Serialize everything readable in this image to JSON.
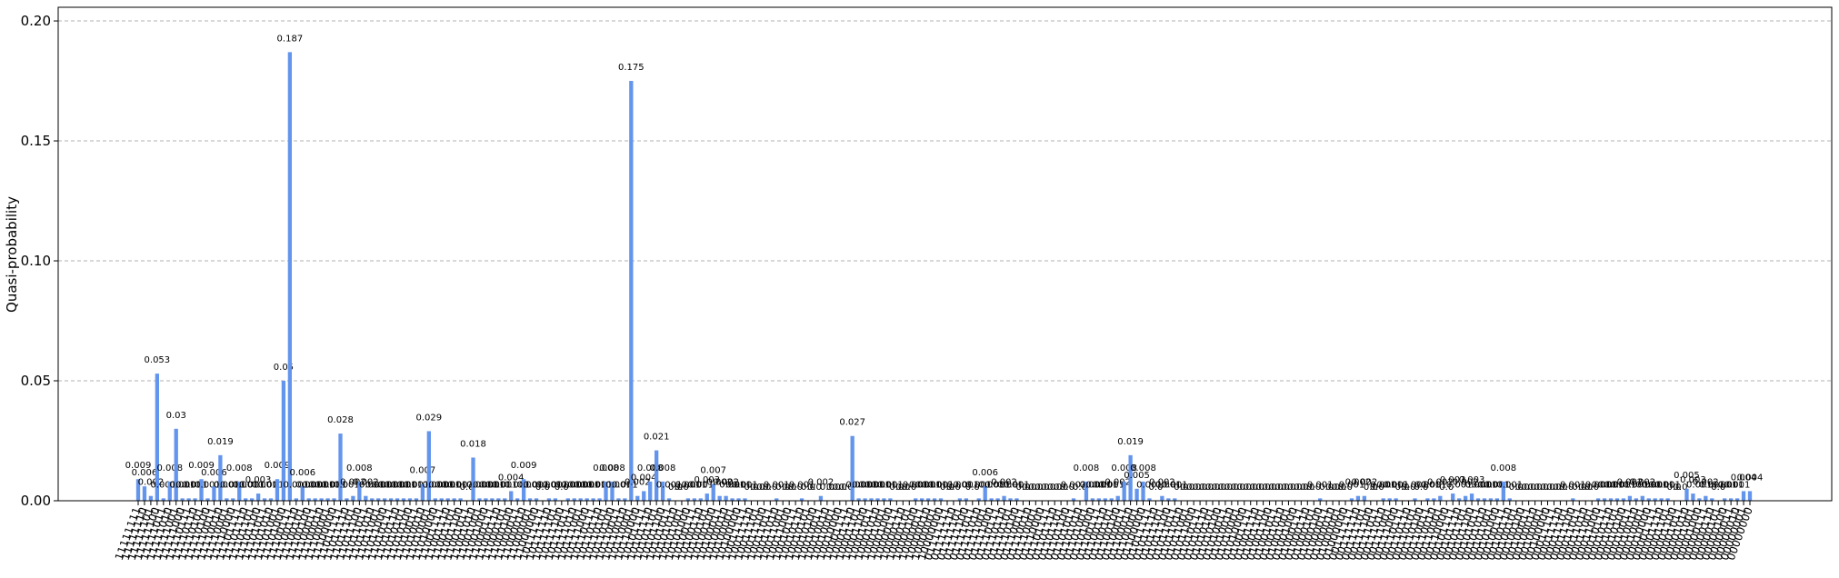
{
  "chart_data": {
    "type": "bar",
    "ylabel": "Quasi-probability",
    "color": "#6495ed",
    "grid": true,
    "ylim": [
      0,
      0.2057
    ],
    "yticks": [
      {
        "value": 0,
        "label": "0.00"
      },
      {
        "value": 0.05,
        "label": "0.05"
      },
      {
        "value": 0.1,
        "label": "0.10"
      },
      {
        "value": 0.15,
        "label": "0.15"
      },
      {
        "value": 0.2,
        "label": "0.20"
      }
    ],
    "categories": [
      "11111111",
      "11111110",
      "11111101",
      "11111100",
      "11111011",
      "11111010",
      "11111001",
      "11111000",
      "11110111",
      "11110110",
      "11110101",
      "11110100",
      "11110011",
      "11110010",
      "11110001",
      "11110000",
      "11101111",
      "11101110",
      "11101101",
      "11101100",
      "11101011",
      "11101010",
      "11101001",
      "11101000",
      "11100111",
      "11100110",
      "11100101",
      "11100100",
      "11100011",
      "11100010",
      "11100001",
      "11100000",
      "11011111",
      "11011110",
      "11011101",
      "11011100",
      "11011011",
      "11011010",
      "11011001",
      "11011000",
      "11010111",
      "11010110",
      "11010101",
      "11010100",
      "11010011",
      "11010010",
      "11010001",
      "11010000",
      "11001111",
      "11001110",
      "11001101",
      "11001100",
      "11001011",
      "11001010",
      "11001001",
      "11001000",
      "11000111",
      "11000110",
      "11000101",
      "11000100",
      "11000011",
      "11000010",
      "11000001",
      "11000000",
      "10111111",
      "10111110",
      "10111101",
      "10111100",
      "10111011",
      "10111010",
      "10111001",
      "10111000",
      "10110111",
      "10110110",
      "10110101",
      "10110100",
      "10110011",
      "10110010",
      "10110001",
      "10110000",
      "10101111",
      "10101110",
      "10101101",
      "10101100",
      "10101011",
      "10101010",
      "10101001",
      "10101000",
      "10100111",
      "10100110",
      "10100101",
      "10100100",
      "10100011",
      "10100010",
      "10100001",
      "10100000",
      "10011111",
      "10011110",
      "10011101",
      "10011100",
      "10011011",
      "10011010",
      "10011001",
      "10011000",
      "10010111",
      "10010110",
      "10010101",
      "10010100",
      "10010011",
      "10010010",
      "10010001",
      "10010000",
      "10001111",
      "10001110",
      "10001101",
      "10001100",
      "10001011",
      "10001010",
      "10001001",
      "10001000",
      "10000111",
      "10000110",
      "10000101",
      "10000100",
      "10000011",
      "10000010",
      "10000001",
      "10000000",
      "01111111",
      "01111110",
      "01111101",
      "01111100",
      "01111011",
      "01111010",
      "01111001",
      "01111000",
      "01110111",
      "01110110",
      "01110101",
      "01110100",
      "01110011",
      "01110010",
      "01110001",
      "01110000",
      "01101111",
      "01101110",
      "01101101",
      "01101100",
      "01101011",
      "01101010",
      "01101001",
      "01101000",
      "01100111",
      "01100110",
      "01100101",
      "01100100",
      "01100011",
      "01100010",
      "01100001",
      "01100000",
      "01011111",
      "01011110",
      "01011101",
      "01011100",
      "01011011",
      "01011010",
      "01011001",
      "01011000",
      "01010111",
      "01010110",
      "01010101",
      "01010100",
      "01010011",
      "01010010",
      "01010001",
      "01010000",
      "01001111",
      "01001110",
      "01001101",
      "01001100",
      "01001011",
      "01001010",
      "01001001",
      "01001000",
      "01000111",
      "01000110",
      "01000101",
      "01000100",
      "01000011",
      "01000010",
      "01000001",
      "01000000",
      "00111111",
      "00111110",
      "00111101",
      "00111100",
      "00111011",
      "00111010",
      "00111001",
      "00111000",
      "00110111",
      "00110110",
      "00110101",
      "00110100",
      "00110011",
      "00110010",
      "00110001",
      "00110000",
      "00101111",
      "00101110",
      "00101101",
      "00101100",
      "00101011",
      "00101010",
      "00101001",
      "00101000",
      "00100111",
      "00100110",
      "00100101",
      "00100100",
      "00100011",
      "00100010",
      "00100001",
      "00100000",
      "00011111",
      "00011110",
      "00011101",
      "00011100",
      "00011011",
      "00011010",
      "00011001",
      "00011000",
      "00010111",
      "00010110",
      "00010101",
      "00010100",
      "00010011",
      "00010010",
      "00010001",
      "00010000",
      "00001111",
      "00001110",
      "00001101",
      "00001100",
      "00001011",
      "00001010",
      "00001001",
      "00001000",
      "00000111",
      "00000110",
      "00000101",
      "00000100",
      "00000011",
      "00000010",
      "00000001",
      "00000000"
    ],
    "values": [
      0.009,
      0.006,
      0.002,
      0.053,
      0.001,
      0.008,
      0.03,
      0.001,
      0.001,
      0.001,
      0.009,
      0.001,
      0.006,
      0.019,
      0.001,
      0.001,
      0.008,
      0.001,
      0.001,
      0.003,
      0.001,
      0.001,
      0.009,
      0.05,
      0.187,
      0.001,
      0.006,
      0.001,
      0.001,
      0.001,
      0.001,
      0.001,
      0.028,
      0.001,
      0.002,
      0.008,
      0.002,
      0.001,
      0.001,
      0.001,
      0.001,
      0.001,
      0.001,
      0.001,
      0.001,
      0.007,
      0.029,
      0.001,
      0.001,
      0.001,
      0.001,
      0.001,
      0,
      0.018,
      0.001,
      0.001,
      0.001,
      0.001,
      0.001,
      0.004,
      0.001,
      0.009,
      0.001,
      0.001,
      0,
      0.001,
      0.001,
      0,
      0.001,
      0.001,
      0.001,
      0.001,
      0.001,
      0.001,
      0.008,
      0.008,
      0.001,
      0.001,
      0.175,
      0.002,
      0.004,
      0.008,
      0.021,
      0.008,
      0.001,
      0,
      0,
      0.001,
      0.001,
      0.001,
      0.003,
      0.007,
      0.002,
      0.002,
      0.001,
      0.001,
      0.001,
      0,
      0,
      0,
      0,
      0.001,
      0,
      0,
      0,
      0.001,
      0,
      0,
      0.002,
      0,
      0,
      0,
      0,
      0.027,
      0.001,
      0.001,
      0.001,
      0.001,
      0.001,
      0.001,
      0,
      0,
      0,
      0.001,
      0.001,
      0.001,
      0.001,
      0.001,
      0,
      0,
      0.001,
      0.001,
      0,
      0.001,
      0.006,
      0.001,
      0.001,
      0.002,
      0.001,
      0.001,
      0,
      0,
      0,
      0,
      0,
      0,
      0,
      0,
      0.001,
      0,
      0.008,
      0.001,
      0.001,
      0.001,
      0.001,
      0.002,
      0.008,
      0.019,
      0.005,
      0.008,
      0.001,
      0,
      0.002,
      0.001,
      0.001,
      0,
      0,
      0,
      0,
      0,
      0,
      0,
      0,
      0,
      0,
      0,
      0,
      0,
      0,
      0,
      0,
      0,
      0,
      0,
      0,
      0,
      0,
      0.001,
      0,
      0,
      0,
      0,
      0.001,
      0.002,
      0.002,
      0,
      0,
      0.001,
      0.001,
      0.001,
      0,
      0,
      0.001,
      0,
      0.001,
      0.001,
      0.002,
      0,
      0.003,
      0.001,
      0.002,
      0.003,
      0.001,
      0.001,
      0.001,
      0.001,
      0.008,
      0.001,
      0,
      0,
      0,
      0,
      0,
      0,
      0,
      0,
      0,
      0.001,
      0,
      0,
      0,
      0.001,
      0.001,
      0.001,
      0.001,
      0.001,
      0.002,
      0.001,
      0.002,
      0.001,
      0.001,
      0.001,
      0.001,
      0,
      0,
      0.005,
      0.003,
      0.001,
      0.002,
      0.001,
      0,
      0.001,
      0.001,
      0.001,
      0.004,
      0.004
    ],
    "value_labels": [
      "0.009",
      "0.006",
      "0.002",
      "0.053",
      "0.001",
      "0.008",
      "0.03",
      "0.001",
      "0.001",
      "0.001",
      "0.009",
      "0.001",
      "0.006",
      "0.019",
      "0.001",
      "0.001",
      "0.008",
      "0.001",
      "0.001",
      "0.003",
      "0.001",
      "0.001",
      "0.009",
      "0.05",
      "0.187",
      "0.001",
      "0.006",
      "0.001",
      "0.001",
      "0.001",
      "0.001",
      "0.001",
      "0.028",
      "0.001",
      "0.002",
      "0.008",
      "0.002",
      "0.001",
      "0.001",
      "0.001",
      "0.001",
      "0.001",
      "0.001",
      "0.001",
      "0.001",
      "0.007",
      "0.029",
      "0.001",
      "0.001",
      "0.001",
      "0.001",
      "0.001",
      "0.0",
      "0.018",
      "0.001",
      "0.001",
      "0.001",
      "0.001",
      "0.001",
      "0.004",
      "0.001",
      "0.009",
      "0.001",
      "0.001",
      "0.0",
      "0.001",
      "0.001",
      "0.0",
      "0.001",
      "0.001",
      "0.001",
      "0.001",
      "0.001",
      "0.001",
      "0.008",
      "0.008",
      "0.001",
      "0.001",
      "0.175",
      "0.002",
      "0.004",
      "0.008",
      "0.021",
      "0.008",
      "0.001",
      "0.0",
      "0.0",
      "0.001",
      "0.001",
      "0.001",
      "0.003",
      "0.007",
      "0.002",
      "0.002",
      "0.001",
      "0.001",
      "0.001",
      "0.0",
      "0.0",
      "0.0",
      "0.0",
      "0.001",
      "0.0",
      "0.0",
      "0.0",
      "0.001",
      "0.0",
      "0.0",
      "0.002",
      "0.0",
      "0.0",
      "0.0",
      "0.0",
      "0.027",
      "0.001",
      "0.001",
      "0.001",
      "0.001",
      "0.001",
      "0.001",
      "0.0",
      "0.0",
      "0.0",
      "0.001",
      "0.001",
      "0.001",
      "0.001",
      "0.001",
      "0.0",
      "0.0",
      "0.001",
      "0.001",
      "0.0",
      "0.001",
      "0.006",
      "0.001",
      "0.001",
      "0.002",
      "0.001",
      "0.001",
      "0.0",
      "0.0",
      "0.0",
      "0.0",
      "0.0",
      "0.0",
      "0.0",
      "0.0",
      "0.001",
      "0.0",
      "0.008",
      "0.001",
      "0.001",
      "0.001",
      "0.001",
      "0.002",
      "0.008",
      "0.019",
      "0.005",
      "0.008",
      "0.001",
      "0.0",
      "0.002",
      "0.001",
      "0.001",
      "0.0",
      "0.0",
      "0.0",
      "0.0",
      "0.0",
      "0.0",
      "0.0",
      "0.0",
      "0.0",
      "0.0",
      "0.0",
      "0.0",
      "0.0",
      "0.0",
      "0.0",
      "0.0",
      "0.0",
      "0.0",
      "0.0",
      "0.0",
      "0.0",
      "0.0",
      "0.001",
      "0.0",
      "0.0",
      "0.0",
      "0.0",
      "0.001",
      "0.002",
      "0.002",
      "0.0",
      "0.0",
      "0.001",
      "0.001",
      "0.001",
      "0.0",
      "0.0",
      "0.001",
      "0.0",
      "0.001",
      "0.001",
      "0.002",
      "0.0",
      "0.003",
      "0.001",
      "0.002",
      "0.003",
      "0.001",
      "0.001",
      "0.001",
      "0.001",
      "0.008",
      "0.001",
      "0.0",
      "0.0",
      "0.0",
      "0.0",
      "0.0",
      "0.0",
      "0.0",
      "0.0",
      "0.0",
      "0.001",
      "0.0",
      "0.0",
      "0.0",
      "0.001",
      "0.001",
      "0.001",
      "0.001",
      "0.001",
      "0.002",
      "0.001",
      "0.002",
      "0.001",
      "0.001",
      "0.001",
      "0.001",
      "0.0",
      "0.0",
      "0.005",
      "0.003",
      "0.001",
      "0.002",
      "0.001",
      "0.0",
      "0.001",
      "0.001",
      "0.001",
      "0.004",
      "0.004"
    ]
  }
}
